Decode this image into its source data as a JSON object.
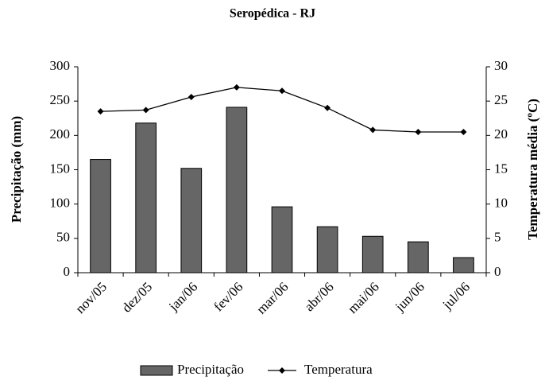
{
  "chart_data": {
    "type": "bar",
    "title": "Seropédica - RJ",
    "categories": [
      "nov/05",
      "dez/05",
      "jan/06",
      "fev/06",
      "mar/06",
      "abr/06",
      "mai/06",
      "jun/06",
      "jul/06"
    ],
    "series": [
      {
        "name": "Precipitação",
        "type": "bar",
        "color": "#666666",
        "values": [
          165,
          218,
          152,
          241,
          96,
          67,
          53,
          45,
          22
        ]
      },
      {
        "name": "Temperatura",
        "type": "line",
        "axis": "y2",
        "color": "#000000",
        "values": [
          23.5,
          23.7,
          25.6,
          27,
          26.5,
          24,
          20.8,
          20.5,
          20.5
        ]
      }
    ],
    "y_label": "Precipitação (mm)",
    "y2_label": "Temperatura média (ºC)",
    "ylim": [
      0,
      300
    ],
    "yticks": [
      0,
      50,
      100,
      150,
      200,
      250,
      300
    ],
    "y2lim": [
      0,
      30
    ],
    "y2ticks": [
      0,
      5,
      10,
      15,
      20,
      25,
      30
    ],
    "grid": false,
    "legend": "bottom"
  }
}
